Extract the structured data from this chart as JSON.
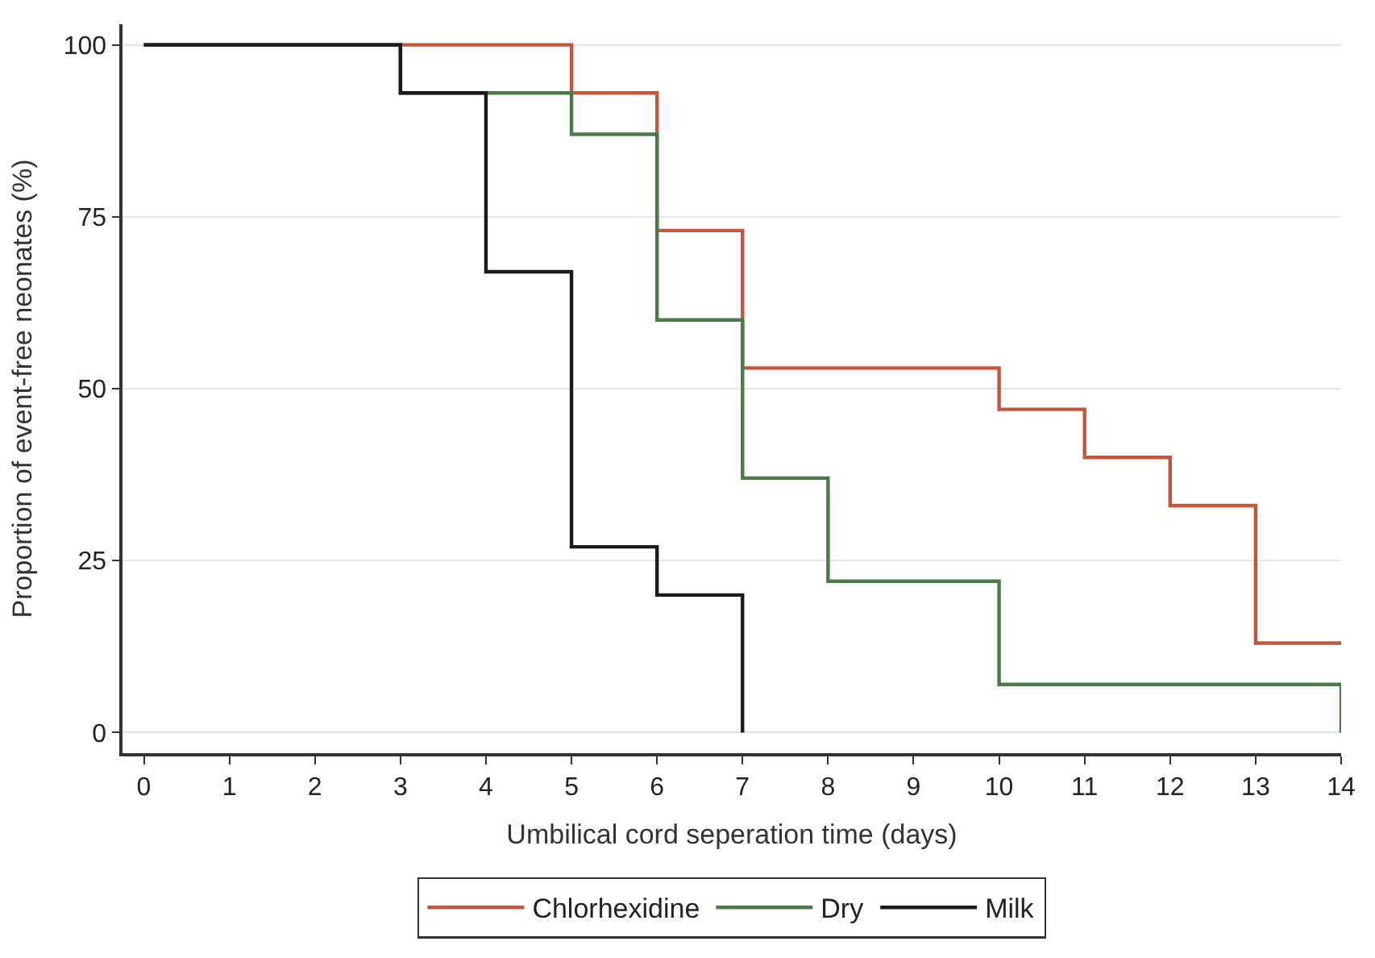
{
  "chart_data": {
    "type": "step",
    "xlabel": "Umbilical cord seperation time (days)",
    "ylabel": "Proportion of event-free neonates (%)",
    "series": [
      {
        "name": "Chlorhexidine",
        "color": "#c8553a",
        "x": [
          0,
          5,
          6,
          7,
          10,
          11,
          12,
          13,
          14
        ],
        "values": [
          100,
          93,
          73,
          53,
          47,
          40,
          33,
          13,
          13
        ]
      },
      {
        "name": "Dry",
        "color": "#4a7a4a",
        "x": [
          0,
          3,
          5,
          6,
          7,
          8,
          10,
          14
        ],
        "values": [
          100,
          93,
          87,
          60,
          37,
          22,
          7,
          0
        ]
      },
      {
        "name": "Milk",
        "color": "#1a1a1a",
        "x": [
          0,
          3,
          4,
          5,
          6,
          7
        ],
        "values": [
          100,
          93,
          67,
          27,
          20,
          0
        ]
      }
    ],
    "xlim": [
      -0.25,
      14
    ],
    "xticks": [
      0,
      1,
      2,
      3,
      4,
      5,
      6,
      7,
      8,
      9,
      10,
      11,
      12,
      13,
      14
    ],
    "ylim": [
      -3,
      103
    ],
    "yticks": [
      0,
      25,
      50,
      75,
      100
    ],
    "grid": "y",
    "legend": "bottom",
    "marker": "none",
    "line_style": "solid"
  }
}
